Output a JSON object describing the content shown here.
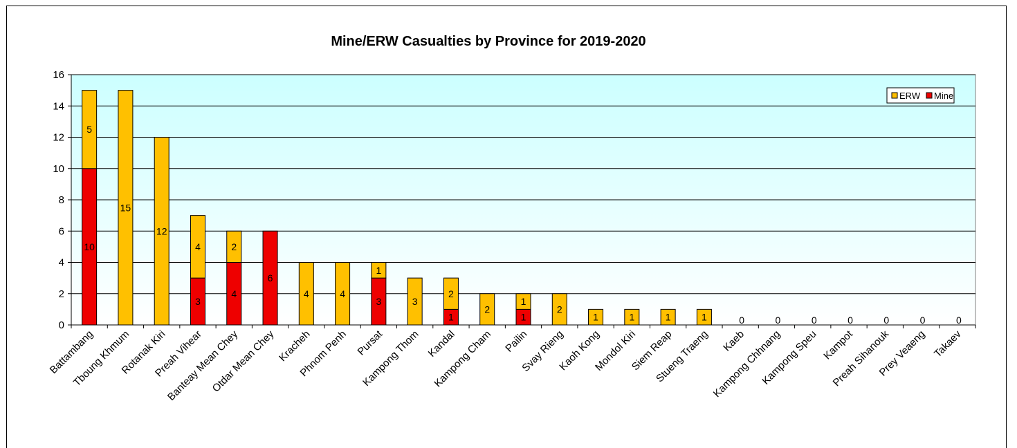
{
  "chart_data": {
    "type": "bar",
    "stacked": true,
    "title": "Mine/ERW Casualties by Province for 2019-2020",
    "xlabel": "",
    "ylabel": "",
    "ylim": [
      0,
      16
    ],
    "yticks": [
      0,
      2,
      4,
      6,
      8,
      10,
      12,
      14,
      16
    ],
    "grid": true,
    "legend_position": "top-right",
    "categories": [
      "Battambang",
      "Tboung Khmum",
      "Rotanak Kiri",
      "Preah Vihear",
      "Banteay Mean Chey",
      "Otdar Mean Chey",
      "Kracheh",
      "Phnom Penh",
      "Pursat",
      "Kampong Thom",
      "Kandal",
      "Kampong Cham",
      "Pailin",
      "Svay Rieng",
      "Kaoh Kong",
      "Mondol Kiri",
      "Siem Reap",
      "Stueng Traeng",
      "Kaeb",
      "Kampong Chhnang",
      "Kampong Speu",
      "Kampot",
      "Preah Sihanouk",
      "Prey Veaeng",
      "Takaev"
    ],
    "series": [
      {
        "name": "Mine",
        "color": "#ee0000",
        "values": [
          10,
          0,
          0,
          3,
          4,
          6,
          0,
          0,
          3,
          0,
          1,
          0,
          1,
          0,
          0,
          0,
          0,
          0,
          0,
          0,
          0,
          0,
          0,
          0,
          0
        ]
      },
      {
        "name": "ERW",
        "color": "#ffc000",
        "values": [
          5,
          15,
          12,
          4,
          2,
          0,
          4,
          4,
          1,
          3,
          2,
          2,
          1,
          2,
          1,
          1,
          1,
          1,
          0,
          0,
          0,
          0,
          0,
          0,
          0
        ]
      }
    ],
    "legend_order": [
      "ERW",
      "Mine"
    ],
    "colors": {
      "plot_bg_top": "#ccffff",
      "plot_bg_bottom": "#ffffff",
      "mine": "#ee0000",
      "erw": "#ffc000"
    }
  }
}
